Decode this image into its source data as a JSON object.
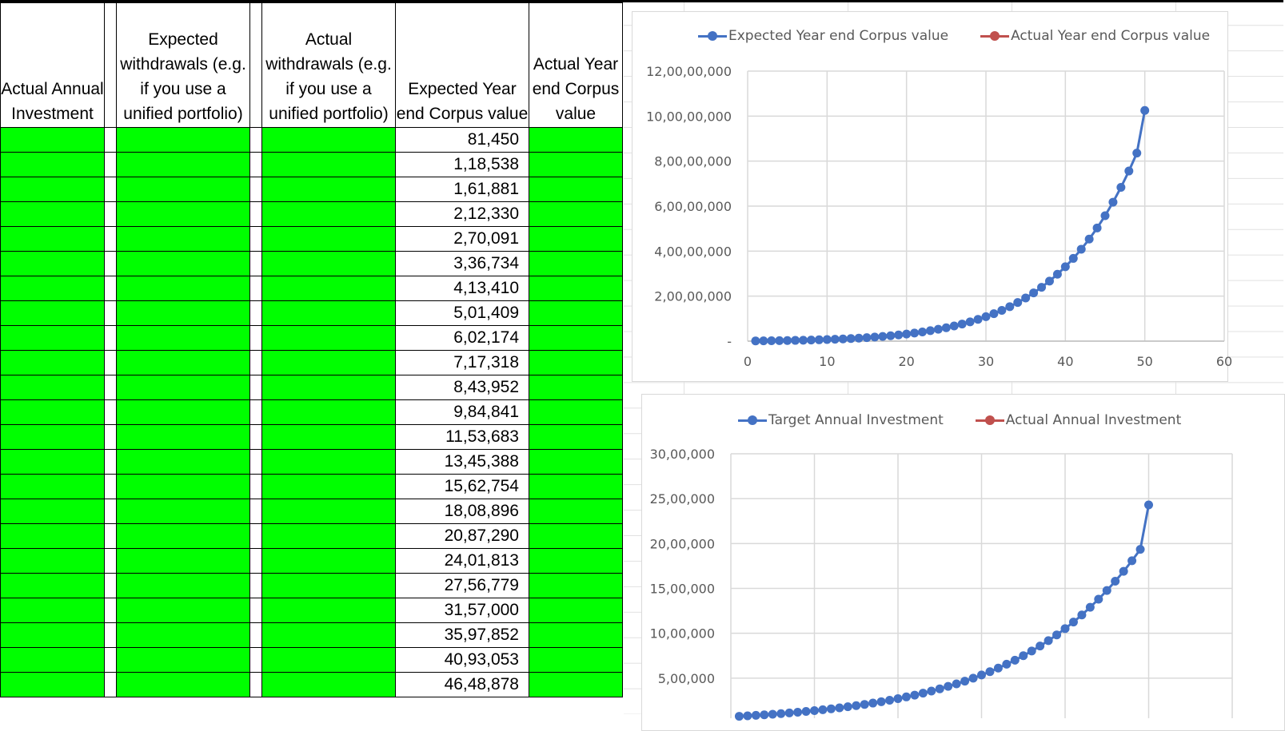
{
  "sheet": {
    "headers": {
      "actual_annual_investment": "Actual Annual Investment",
      "expected_withdrawals": "Expected withdrawals (e.g. if you use a unified portfolio)",
      "actual_withdrawals": "Actual withdrawals (e.g. if you use a unified portfolio)",
      "expected_corpus": "Expected Year end Corpus value",
      "actual_corpus": "Actual Year end Corpus value"
    },
    "expected_corpus_values": [
      "81,450",
      "1,18,538",
      "1,61,881",
      "2,12,330",
      "2,70,091",
      "3,36,734",
      "4,13,410",
      "5,01,409",
      "6,02,174",
      "7,17,318",
      "8,43,952",
      "9,84,841",
      "11,53,683",
      "13,45,388",
      "15,62,754",
      "18,08,896",
      "20,87,290",
      "24,01,813",
      "27,56,779",
      "31,57,000",
      "35,97,852",
      "40,93,053",
      "46,48,878"
    ],
    "input_fill_color": "#00ff00"
  },
  "chart_data": [
    {
      "type": "line",
      "title": "",
      "legend_position": "top",
      "series": [
        {
          "name": "Expected Year end Corpus value",
          "color": "#4472c4",
          "x": [
            1,
            2,
            3,
            4,
            5,
            6,
            7,
            8,
            9,
            10,
            11,
            12,
            13,
            14,
            15,
            16,
            17,
            18,
            19,
            20,
            21,
            22,
            23,
            24,
            25,
            26,
            27,
            28,
            29,
            30,
            31,
            32,
            33,
            34,
            35,
            36,
            37,
            38,
            39,
            40,
            41,
            42,
            43,
            44,
            45,
            46,
            47,
            48,
            49,
            50
          ],
          "values": [
            81450,
            118538,
            161881,
            212330,
            270091,
            336734,
            413410,
            501409,
            602174,
            717318,
            843952,
            984841,
            1153683,
            1345388,
            1562754,
            1808896,
            2087290,
            2401813,
            2756779,
            3157000,
            3597852,
            4093053,
            4648878,
            5270000,
            5960000,
            6740000,
            7610000,
            8580000,
            9660000,
            10870000,
            12200000,
            13680000,
            15330000,
            17160000,
            19190000,
            21440000,
            23930000,
            26680000,
            29720000,
            33070000,
            36770000,
            40850000,
            45340000,
            50300000,
            55750000,
            61750000,
            68350000,
            75600000,
            83550000,
            102500000
          ]
        },
        {
          "name": "Actual Year end Corpus value",
          "color": "#c0504d",
          "x": [],
          "values": []
        }
      ],
      "xlabel": "",
      "ylabel": "",
      "xlim": [
        0,
        60
      ],
      "xticks": [
        "0",
        "10",
        "20",
        "30",
        "40",
        "50",
        "60"
      ],
      "ylim": [
        0,
        120000000
      ],
      "yticks": [
        "-",
        "2,00,00,000",
        "4,00,00,000",
        "6,00,00,000",
        "8,00,00,000",
        "10,00,00,000",
        "12,00,00,000"
      ],
      "grid": true
    },
    {
      "type": "line",
      "title": "",
      "legend_position": "top",
      "series": [
        {
          "name": "Target Annual Investment",
          "color": "#4472c4",
          "x": [
            1,
            2,
            3,
            4,
            5,
            6,
            7,
            8,
            9,
            10,
            11,
            12,
            13,
            14,
            15,
            16,
            17,
            18,
            19,
            20,
            21,
            22,
            23,
            24,
            25,
            26,
            27,
            28,
            29,
            30,
            31,
            32,
            33,
            34,
            35,
            36,
            37,
            38,
            39,
            40,
            41,
            42,
            43,
            44,
            45,
            46,
            47,
            48,
            49,
            50
          ],
          "values": [
            75000,
            80000,
            85500,
            91500,
            98000,
            105000,
            112500,
            120500,
            129000,
            138000,
            148000,
            158500,
            169500,
            181500,
            194000,
            207500,
            222000,
            237500,
            254000,
            272000,
            291000,
            311000,
            333000,
            356000,
            381000,
            408000,
            436000,
            466000,
            500000,
            535000,
            572000,
            612000,
            655000,
            700000,
            750000,
            802000,
            858000,
            918000,
            982000,
            1052000,
            1125000,
            1204000,
            1290000,
            1380000,
            1477000,
            1580000,
            1690000,
            1808000,
            1935000,
            2430000
          ]
        },
        {
          "name": "Actual Annual Investment",
          "color": "#c0504d",
          "x": [],
          "values": []
        }
      ],
      "xlabel": "",
      "ylabel": "",
      "xlim": [
        0,
        60
      ],
      "ylim": [
        0,
        3000000
      ],
      "yticks": [
        "5,00,000",
        "10,00,000",
        "15,00,000",
        "20,00,000",
        "25,00,000",
        "30,00,000"
      ],
      "grid": true
    }
  ],
  "charts": {
    "corpus": {
      "legend": [
        "Expected Year end Corpus value",
        "Actual Year end Corpus value"
      ],
      "yticks": [
        "12,00,00,000",
        "10,00,00,000",
        "8,00,00,000",
        "6,00,00,000",
        "4,00,00,000",
        "2,00,00,000",
        "-"
      ],
      "xticks": [
        "0",
        "10",
        "20",
        "30",
        "40",
        "50",
        "60"
      ]
    },
    "investment": {
      "legend": [
        "Target Annual Investment",
        "Actual Annual Investment"
      ],
      "yticks": [
        "30,00,000",
        "25,00,000",
        "20,00,000",
        "15,00,000",
        "10,00,000",
        "5,00,000"
      ]
    },
    "colors": {
      "series_blue": "#4472c4",
      "series_red": "#c0504d",
      "grid": "#d9d9d9",
      "axis_text": "#595959"
    }
  }
}
